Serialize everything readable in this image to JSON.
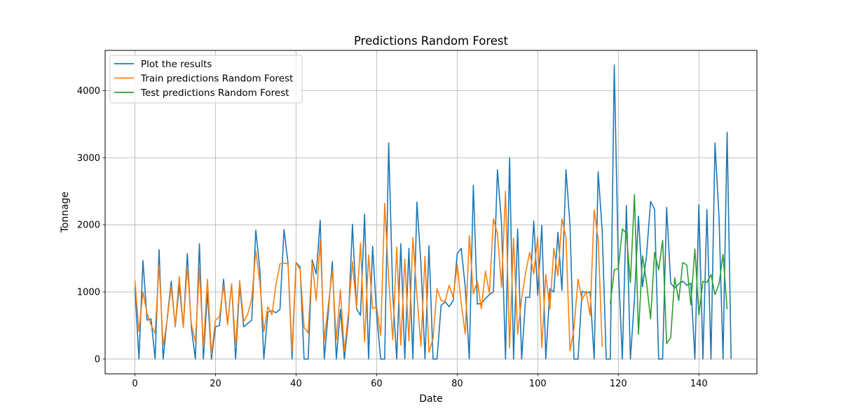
{
  "chart_data": {
    "type": "line",
    "title": "Predictions Random Forest",
    "xlabel": "Date",
    "ylabel": "Tonnage",
    "xlim": [
      -7.4,
      154.4
    ],
    "ylim": [
      -220,
      4600
    ],
    "xticks": [
      0,
      20,
      40,
      60,
      80,
      100,
      120,
      140
    ],
    "yticks": [
      0,
      1000,
      2000,
      3000,
      4000
    ],
    "grid": true,
    "legend_position": "upper left",
    "series": [
      {
        "name": "Plot the results",
        "color": "#1f77b4",
        "x_start": 0,
        "values": [
          1070,
          0,
          1470,
          580,
          600,
          0,
          1630,
          0,
          600,
          1160,
          480,
          1100,
          480,
          1570,
          470,
          0,
          1720,
          0,
          1000,
          0,
          480,
          500,
          1190,
          520,
          1120,
          0,
          1100,
          480,
          530,
          580,
          1920,
          1340,
          0,
          700,
          720,
          690,
          740,
          1930,
          1430,
          0,
          1440,
          1370,
          0,
          0,
          1480,
          1270,
          2070,
          0,
          690,
          1450,
          0,
          740,
          0,
          600,
          2010,
          750,
          650,
          2160,
          0,
          1680,
          660,
          0,
          0,
          3220,
          970,
          0,
          1720,
          0,
          1650,
          0,
          2340,
          1430,
          0,
          1690,
          0,
          0,
          800,
          850,
          780,
          870,
          1570,
          1650,
          1070,
          0,
          2590,
          820,
          830,
          900,
          960,
          1000,
          2820,
          2020,
          0,
          3000,
          0,
          1940,
          0,
          920,
          920,
          2060,
          950,
          1990,
          0,
          1050,
          1000,
          1890,
          1020,
          2820,
          2000,
          0,
          0,
          1010,
          990,
          1000,
          0,
          2790,
          1900,
          0,
          0,
          4380,
          1380,
          0,
          2290,
          0,
          900,
          2130,
          1080,
          1540,
          2350,
          2230,
          0,
          0,
          2260,
          1130,
          1060,
          1120,
          1160,
          1100,
          1130,
          0,
          2300,
          0,
          2230,
          0,
          3220,
          2100,
          0,
          3380,
          0
        ]
      },
      {
        "name": "Train predictions Random Forest",
        "color": "#ff7f0e",
        "x_start": 0,
        "values": [
          1170,
          410,
          1000,
          680,
          510,
          380,
          1400,
          190,
          580,
          1080,
          490,
          1230,
          470,
          1390,
          520,
          260,
          1350,
          160,
          1190,
          70,
          580,
          630,
          1100,
          510,
          1120,
          170,
          1170,
          560,
          670,
          900,
          1610,
          1150,
          410,
          780,
          660,
          1100,
          1420,
          1430,
          1420,
          120,
          1430,
          1340,
          470,
          390,
          1440,
          870,
          1760,
          270,
          800,
          1320,
          290,
          1030,
          110,
          690,
          1450,
          760,
          1730,
          260,
          1550,
          750,
          780,
          350,
          2320,
          1190,
          290,
          1670,
          210,
          1490,
          270,
          1810,
          950,
          190,
          1530,
          100,
          310,
          1050,
          870,
          860,
          1100,
          920,
          1410,
          830,
          370,
          1840,
          970,
          1160,
          750,
          1310,
          980,
          2090,
          1870,
          1070,
          2500,
          170,
          1800,
          370,
          900,
          1290,
          1590,
          1270,
          1820,
          170,
          1260,
          750,
          1650,
          1240,
          2090,
          1810,
          120,
          460,
          1190,
          880,
          1010,
          650,
          2220,
          1790,
          180
        ]
      },
      {
        "name": "Test predictions Random Forest",
        "color": "#2ca02c",
        "x_start": 118,
        "values": [
          820,
          1330,
          1350,
          1940,
          1870,
          1140,
          2450,
          370,
          1540,
          1140,
          600,
          1590,
          1330,
          1770,
          230,
          320,
          1210,
          870,
          1440,
          1400,
          810,
          1640,
          660,
          1160,
          1140,
          1260,
          960,
          1120,
          1560,
          740
        ]
      }
    ]
  }
}
